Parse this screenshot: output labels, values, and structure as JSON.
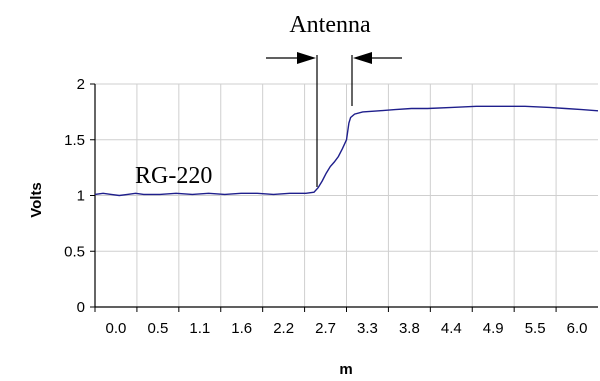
{
  "chart_data": {
    "type": "line",
    "title": "",
    "xlabel": "m",
    "ylabel": "Volts",
    "xlim": [
      0.0,
      6.2
    ],
    "ylim": [
      0,
      2
    ],
    "x_ticks": [
      "0.0",
      "0.5",
      "1.1",
      "1.6",
      "2.2",
      "2.7",
      "3.3",
      "3.8",
      "4.4",
      "4.9",
      "5.5",
      "6.0"
    ],
    "y_ticks": [
      "0",
      "0.5",
      "1",
      "1.5",
      "2"
    ],
    "grid": true,
    "legend": "none",
    "line_color": "#1f1f8c",
    "annotations": {
      "antenna_label": "Antenna",
      "cable_label": "RG-220"
    },
    "series": [
      {
        "values": [
          [
            0.0,
            1.01
          ],
          [
            0.1,
            1.02
          ],
          [
            0.2,
            1.01
          ],
          [
            0.3,
            1.0
          ],
          [
            0.4,
            1.01
          ],
          [
            0.5,
            1.02
          ],
          [
            0.6,
            1.01
          ],
          [
            0.8,
            1.01
          ],
          [
            1.0,
            1.02
          ],
          [
            1.2,
            1.01
          ],
          [
            1.4,
            1.02
          ],
          [
            1.6,
            1.01
          ],
          [
            1.8,
            1.02
          ],
          [
            2.0,
            1.02
          ],
          [
            2.2,
            1.01
          ],
          [
            2.4,
            1.02
          ],
          [
            2.6,
            1.02
          ],
          [
            2.7,
            1.03
          ],
          [
            2.75,
            1.07
          ],
          [
            2.8,
            1.13
          ],
          [
            2.85,
            1.2
          ],
          [
            2.9,
            1.26
          ],
          [
            2.95,
            1.3
          ],
          [
            3.0,
            1.35
          ],
          [
            3.05,
            1.42
          ],
          [
            3.1,
            1.5
          ],
          [
            3.13,
            1.65
          ],
          [
            3.15,
            1.7
          ],
          [
            3.2,
            1.73
          ],
          [
            3.3,
            1.75
          ],
          [
            3.5,
            1.76
          ],
          [
            3.7,
            1.77
          ],
          [
            3.9,
            1.78
          ],
          [
            4.1,
            1.78
          ],
          [
            4.4,
            1.79
          ],
          [
            4.7,
            1.8
          ],
          [
            5.0,
            1.8
          ],
          [
            5.3,
            1.8
          ],
          [
            5.6,
            1.79
          ],
          [
            5.8,
            1.78
          ],
          [
            6.0,
            1.77
          ],
          [
            6.2,
            1.76
          ]
        ]
      }
    ]
  }
}
